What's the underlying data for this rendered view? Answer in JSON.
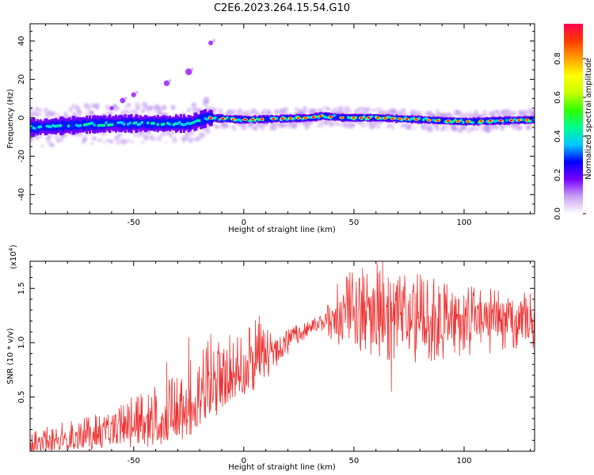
{
  "title": "C2E6.2023.264.15.54.G10",
  "chart_data": [
    {
      "type": "heatmap",
      "xlabel": "Height of straight line (km)",
      "ylabel": "Frequency (Hz)",
      "xlim": [
        -97,
        132
      ],
      "ylim": [
        -50,
        49
      ],
      "xticks": [
        -50,
        0,
        50,
        100
      ],
      "yticks": [
        -40,
        -20,
        0,
        20,
        40
      ],
      "colorbar": {
        "label": "Normalized spectral amplitude",
        "range": [
          0,
          0.98
        ],
        "ticks": [
          "0.0",
          "0.2",
          "0.4",
          "0.6",
          "0.8"
        ],
        "colors": [
          "#ffffff",
          "#c8a0f0",
          "#7800ff",
          "#0000ff",
          "#00c8ff",
          "#00ff90",
          "#30ff00",
          "#c8ff00",
          "#ffff00",
          "#ffa000",
          "#ff3c00",
          "#ff0050"
        ]
      },
      "band": [
        {
          "x": -95,
          "f": -5
        },
        {
          "x": -80,
          "f": -4
        },
        {
          "x": -60,
          "f": -3
        },
        {
          "x": -40,
          "f": -3
        },
        {
          "x": -25,
          "f": -3
        },
        {
          "x": -17,
          "f": 0
        },
        {
          "x": 0,
          "f": -1
        },
        {
          "x": 30,
          "f": 0
        },
        {
          "x": 35,
          "f": 1
        },
        {
          "x": 45,
          "f": 0
        },
        {
          "x": 60,
          "f": 0
        },
        {
          "x": 80,
          "f": -1
        },
        {
          "x": 100,
          "f": -2
        },
        {
          "x": 132,
          "f": -1
        }
      ],
      "spurious_branch": [
        {
          "x": -60,
          "f": 5
        },
        {
          "x": -55,
          "f": 9
        },
        {
          "x": -50,
          "f": 12
        },
        {
          "x": -35,
          "f": 18
        },
        {
          "x": -25,
          "f": 24
        },
        {
          "x": -15,
          "f": 39
        }
      ]
    },
    {
      "type": "line",
      "xlabel": "Height of straight line (km)",
      "ylabel": "SNR (10 * v/v)",
      "y_multiplier": "(x10",
      "y_multiplier_exp": "4",
      "xlim": [
        -97,
        132
      ],
      "ylim": [
        0,
        1.75
      ],
      "xticks": [
        -50,
        0,
        50,
        100
      ],
      "yticks": [
        "0.5",
        "1.0",
        "1.5"
      ],
      "series": [
        {
          "color": "#ee3333",
          "envelope": [
            {
              "x": -97,
              "lo": 0.0,
              "mean": 0.06,
              "hi": 0.18
            },
            {
              "x": -80,
              "lo": 0.0,
              "mean": 0.1,
              "hi": 0.28
            },
            {
              "x": -60,
              "lo": 0.02,
              "mean": 0.18,
              "hi": 0.4
            },
            {
              "x": -40,
              "lo": 0.04,
              "mean": 0.26,
              "hi": 0.62
            },
            {
              "x": -25,
              "lo": 0.08,
              "mean": 0.36,
              "hi": 0.85
            },
            {
              "x": -15,
              "lo": 0.3,
              "mean": 0.55,
              "hi": 1.05
            },
            {
              "x": -5,
              "lo": 0.4,
              "mean": 0.68,
              "hi": 1.1
            },
            {
              "x": 5,
              "lo": 0.55,
              "mean": 0.78,
              "hi": 1.25
            },
            {
              "x": 15,
              "lo": 0.75,
              "mean": 0.93,
              "hi": 1.1
            },
            {
              "x": 25,
              "lo": 0.98,
              "mean": 1.08,
              "hi": 1.18
            },
            {
              "x": 35,
              "lo": 1.1,
              "mean": 1.18,
              "hi": 1.25
            },
            {
              "x": 45,
              "lo": 0.95,
              "mean": 1.26,
              "hi": 1.65
            },
            {
              "x": 60,
              "lo": 0.85,
              "mean": 1.25,
              "hi": 1.75
            },
            {
              "x": 80,
              "lo": 0.8,
              "mean": 1.22,
              "hi": 1.65
            },
            {
              "x": 100,
              "lo": 0.88,
              "mean": 1.22,
              "hi": 1.55
            },
            {
              "x": 120,
              "lo": 0.9,
              "mean": 1.2,
              "hi": 1.5
            },
            {
              "x": 132,
              "lo": 0.95,
              "mean": 1.2,
              "hi": 1.45
            }
          ],
          "peaks": [
            {
              "x": -35,
              "y": 0.82
            },
            {
              "x": -25,
              "y": 1.05
            },
            {
              "x": -15,
              "y": 1.08
            },
            {
              "x": 7,
              "y": 1.25
            },
            {
              "x": 63,
              "y": 1.75
            },
            {
              "x": 67,
              "y": 0.55
            }
          ]
        }
      ]
    }
  ]
}
